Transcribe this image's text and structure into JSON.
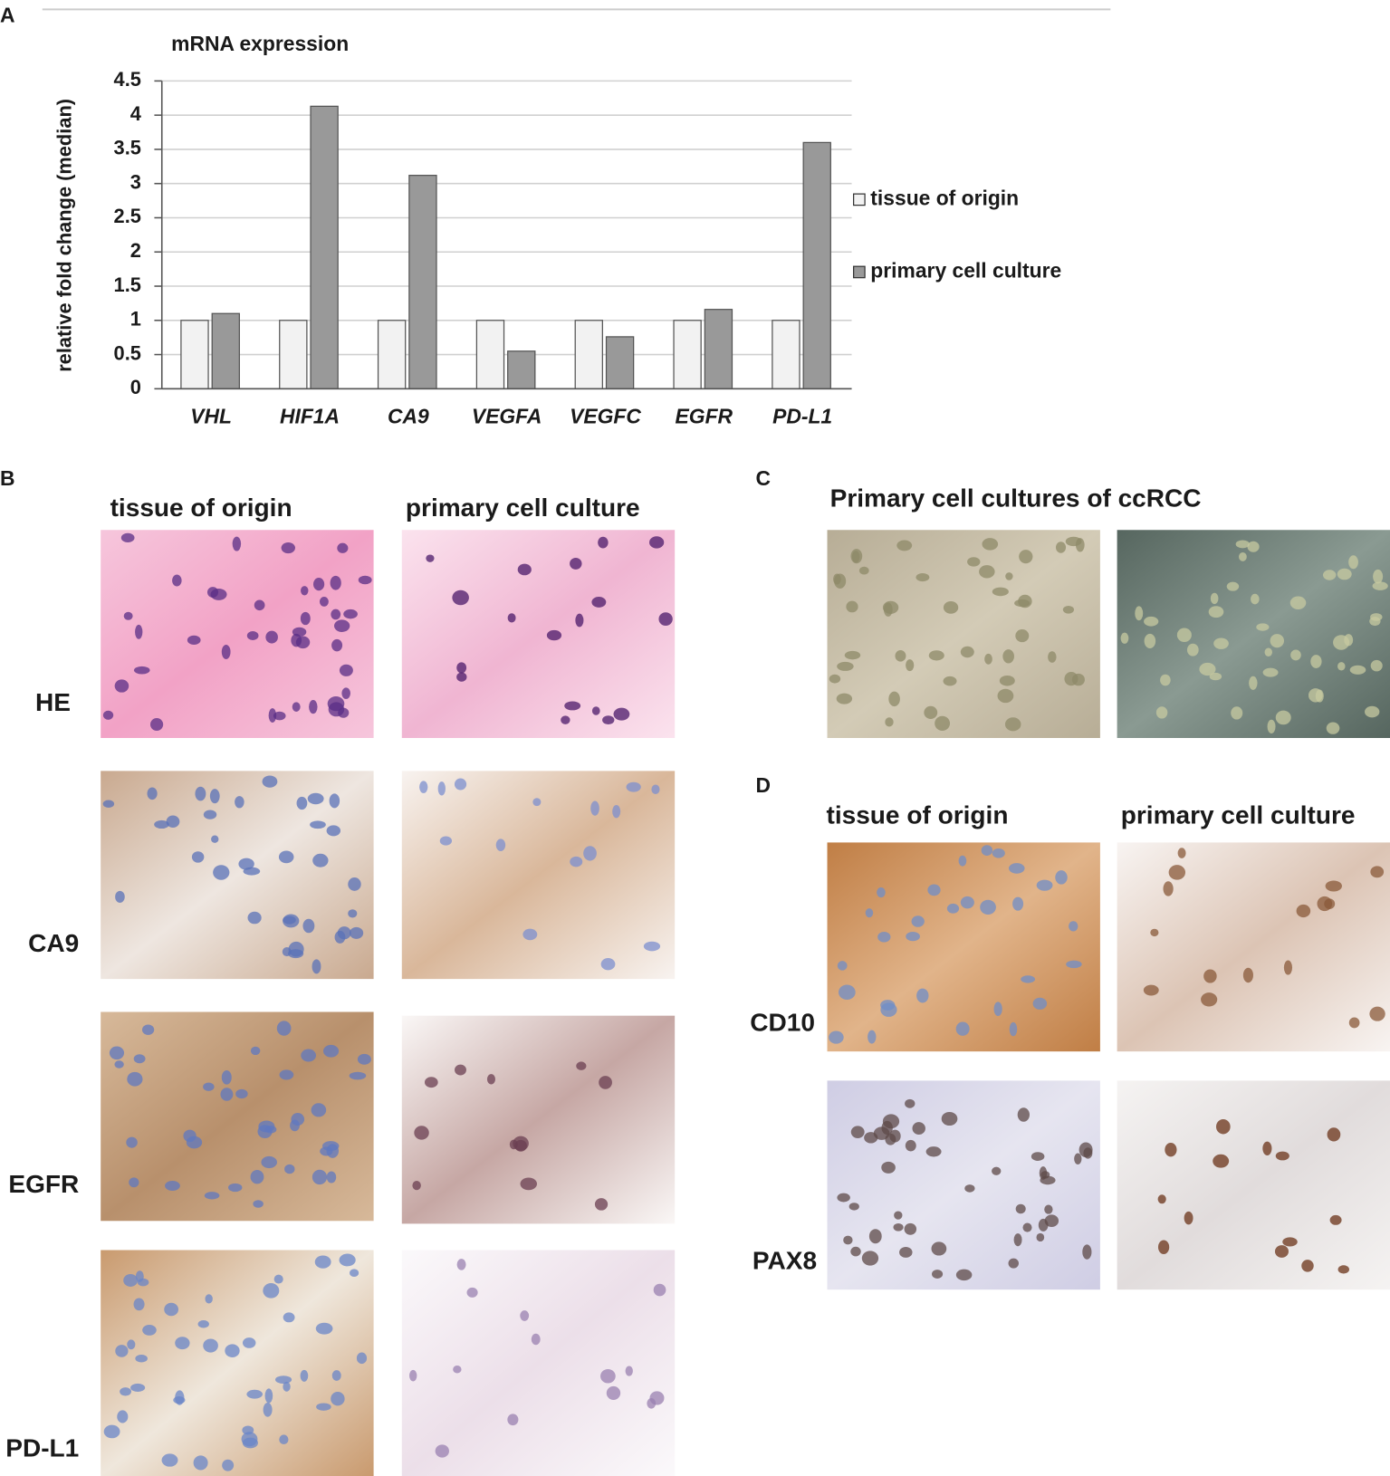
{
  "chart_data": {
    "type": "bar",
    "title": "mRNA expression",
    "y_label": "relative fold change (median)",
    "categories": [
      "VHL",
      "HIF1A",
      "CA9",
      "VEGFA",
      "VEGFC",
      "EGFR",
      "PD-L1"
    ],
    "series": [
      {
        "name": "tissue of origin",
        "color": "#f2f2f2",
        "values": [
          1,
          1,
          1,
          1,
          1,
          1,
          1
        ]
      },
      {
        "name": "primary cell culture",
        "color": "#999999",
        "values": [
          1.1,
          4.13,
          3.12,
          0.55,
          0.76,
          1.16,
          3.6
        ]
      }
    ],
    "ylim": [
      0,
      4.5
    ],
    "yticks": [
      0,
      0.5,
      1,
      1.5,
      2,
      2.5,
      3,
      3.5,
      4,
      4.5
    ],
    "grid": true,
    "legend": "right"
  },
  "panels": {
    "a": {
      "label": "A"
    },
    "b": {
      "label": "B",
      "columns": [
        "tissue of origin",
        "primary cell culture"
      ],
      "rows": [
        "HE",
        "CA9",
        "EGFR",
        "PD-L1"
      ]
    },
    "c": {
      "label": "C",
      "title": "Primary cell cultures of ccRCC"
    },
    "d": {
      "label": "D",
      "columns": [
        "tissue of origin",
        "primary cell culture"
      ],
      "rows": [
        "CD10",
        "PAX8"
      ]
    }
  }
}
